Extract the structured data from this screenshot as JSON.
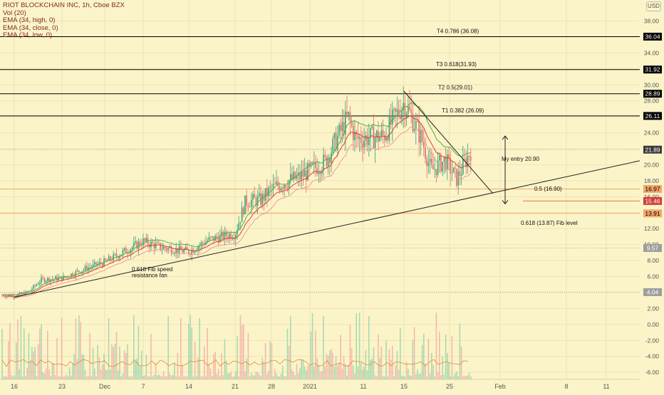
{
  "legend": {
    "title": "RIOT BLOCKCHAIN INC, 1h, Cboe BZX",
    "vol": "Vol (20)",
    "ema_high": "EMA (34, high, 0)",
    "ema_close": "EMA (34, close, 0)",
    "ema_low": "EMA (34, low, 0)"
  },
  "currency_button": "USD",
  "colors": {
    "background": "#fbf4c8",
    "up_candle": "#3aa27a",
    "down_candle": "#e26b6b",
    "ema_high": "#4caf50",
    "ema_close": "#e53935",
    "ema_low": "#ef9a9a",
    "level_orange": "#f5a66a",
    "grid": "#efe3b4"
  },
  "chart_data": {
    "type": "candlestick",
    "title": "RIOT BLOCKCHAIN INC, 1h, Cboe BZX",
    "x_ticks": [
      "16",
      "23",
      "Dec",
      "7",
      "14",
      "21",
      "28",
      "2021",
      "11",
      "15",
      "25",
      "Feb",
      "8",
      "11"
    ],
    "y_ticks": [
      "38.00",
      "36.00",
      "34.00",
      "32.00",
      "30.00",
      "28.00",
      "26.00",
      "24.00",
      "22.00",
      "20.00",
      "18.00",
      "16.00",
      "14.00",
      "12.00",
      "10.00",
      "8.00",
      "6.00",
      "4.00",
      "2.00",
      "0.00",
      "-2.00",
      "-4.00",
      "-6.00"
    ],
    "ylim": [
      -6.8,
      40.2
    ],
    "price_path": [
      {
        "x": "Nov 16",
        "y": 3.6
      },
      {
        "x": "Nov 18",
        "y": 4.0
      },
      {
        "x": "Nov 20",
        "y": 5.6
      },
      {
        "x": "Nov 23",
        "y": 5.8
      },
      {
        "x": "Nov 27",
        "y": 6.9
      },
      {
        "x": "Dec 1",
        "y": 7.8
      },
      {
        "x": "Dec 7",
        "y": 10.4
      },
      {
        "x": "Dec 10",
        "y": 9.6
      },
      {
        "x": "Dec 14",
        "y": 9.1
      },
      {
        "x": "Dec 17",
        "y": 10.6
      },
      {
        "x": "Dec 21",
        "y": 11.4
      },
      {
        "x": "Dec 23",
        "y": 15.4
      },
      {
        "x": "Dec 26",
        "y": 15.6
      },
      {
        "x": "Dec 28",
        "y": 17.0
      },
      {
        "x": "Dec 31",
        "y": 18.0
      },
      {
        "x": "Jan 2",
        "y": 18.4
      },
      {
        "x": "Jan 6",
        "y": 20.4
      },
      {
        "x": "Jan 9",
        "y": 26.0
      },
      {
        "x": "Jan 10",
        "y": 23.2
      },
      {
        "x": "Jan 13",
        "y": 23.6
      },
      {
        "x": "Jan 15",
        "y": 27.8
      },
      {
        "x": "Jan 17",
        "y": 25.6
      },
      {
        "x": "Jan 19",
        "y": 23.0
      },
      {
        "x": "Jan 21",
        "y": 19.2
      },
      {
        "x": "Jan 24",
        "y": 20.6
      },
      {
        "x": "Jan 26",
        "y": 18.2
      },
      {
        "x": "Jan 28",
        "y": 21.9
      }
    ],
    "series": [
      {
        "name": "EMA (34, high, 0)"
      },
      {
        "name": "EMA (34, close, 0)"
      },
      {
        "name": "EMA (34, low, 0)"
      },
      {
        "name": "Vol (20)"
      }
    ],
    "price_levels": [
      {
        "value": 36.04,
        "label": "36.04",
        "line": "black"
      },
      {
        "value": 31.92,
        "label": "31.92",
        "line": "black"
      },
      {
        "value": 28.89,
        "label": "28.89",
        "line": "black"
      },
      {
        "value": 26.11,
        "label": "26.11",
        "line": "black"
      },
      {
        "value": 21.89,
        "label": "21.89",
        "line": "dotted"
      },
      {
        "value": 16.97,
        "label": "16.97",
        "line": "orange"
      },
      {
        "value": 15.46,
        "label": "15.46",
        "line": "orange-short"
      },
      {
        "value": 13.91,
        "label": "13.91",
        "line": "orange"
      },
      {
        "value": 9.57,
        "label": "9.57",
        "line": "dotted"
      },
      {
        "value": 4.04,
        "label": "4.04",
        "line": "dotted"
      }
    ],
    "annotations": [
      "T4 0.786 (36.08)",
      "T3 0.618(31.93)",
      "T2 0.5(29.01)",
      "T1 0.382 (26.09)",
      "My entry 20.90",
      "0.5 (16.90)",
      "0.618 (13.87) Fib level",
      "0.618 Fib speed",
      "resistance fan"
    ],
    "trendlines": [
      {
        "from": {
          "x": "Nov 16",
          "y": 3.4
        },
        "to": {
          "x": "Feb 13",
          "y": 20.5
        }
      },
      {
        "from": {
          "x": "Jan 15",
          "y": 29.2
        },
        "to": {
          "x": "Jan 31",
          "y": 16.4
        }
      }
    ],
    "grid": true
  }
}
